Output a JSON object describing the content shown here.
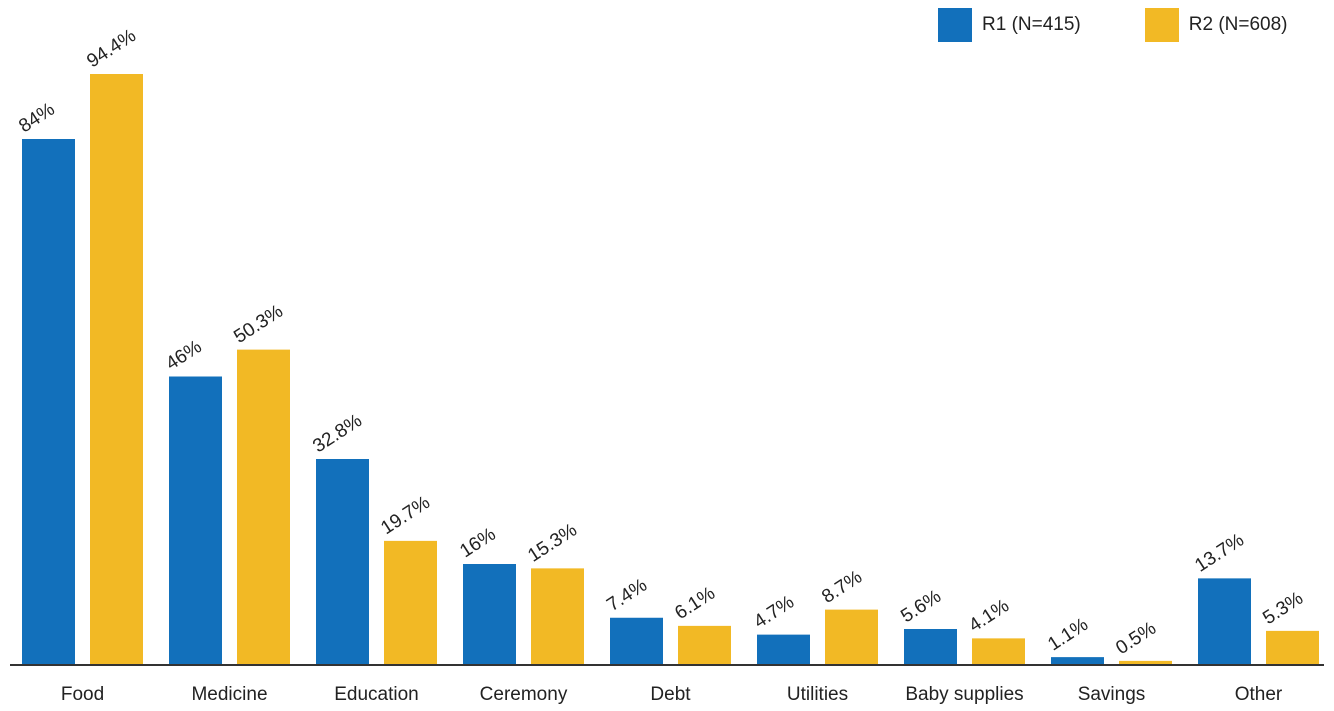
{
  "chart_data": {
    "type": "bar",
    "categories": [
      "Food",
      "Medicine",
      "Education",
      "Ceremony",
      "Debt",
      "Utilities",
      "Baby supplies",
      "Savings",
      "Other"
    ],
    "series": [
      {
        "name": "R1 (N=415)",
        "color": "#1270bb",
        "values": [
          84,
          46,
          32.8,
          16,
          7.4,
          4.7,
          5.6,
          1.1,
          13.7
        ],
        "labels": [
          "84%",
          "46%",
          "32.8%",
          "16%",
          "7.4%",
          "4.7%",
          "5.6%",
          "1.1%",
          "13.7%"
        ]
      },
      {
        "name": "R2 (N=608)",
        "color": "#f2b925",
        "values": [
          94.4,
          50.3,
          19.7,
          15.3,
          6.1,
          8.7,
          4.1,
          0.5,
          5.3
        ],
        "labels": [
          "94.4%",
          "50.3%",
          "19.7%",
          "15.3%",
          "6.1%",
          "8.7%",
          "4.1%",
          "0.5%",
          "5.3%"
        ]
      }
    ],
    "title": "",
    "xlabel": "",
    "ylabel": "",
    "ylim": [
      0,
      100
    ],
    "grid": false,
    "legend_position": "top-right"
  }
}
